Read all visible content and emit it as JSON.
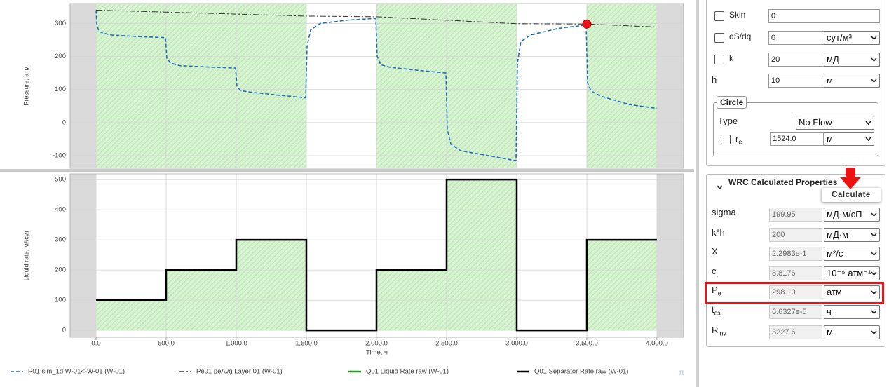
{
  "chart_data": [
    {
      "type": "line",
      "ylabel": "Pressure, атм",
      "xlim": [
        -185,
        4190
      ],
      "ylim": [
        -138,
        360
      ],
      "yticks": [
        -100,
        0,
        100,
        200,
        300
      ],
      "grid": true,
      "series": [
        {
          "name": "P01 sim_1d W-01<-W-01 (W-01)",
          "color": "#1f6fc0",
          "dash": "dashed",
          "x": [
            0,
            5,
            20,
            100,
            300,
            495,
            505,
            530,
            600,
            800,
            995,
            1005,
            1030,
            1100,
            1300,
            1495,
            1505,
            1530,
            1600,
            1800,
            1995,
            2005,
            2030,
            2100,
            2300,
            2495,
            2505,
            2530,
            2600,
            2800,
            2995,
            3005,
            3030,
            3100,
            3300,
            3495,
            3505,
            3530,
            3600,
            3800,
            4000
          ],
          "values": [
            340,
            300,
            275,
            265,
            260,
            257,
            195,
            180,
            172,
            168,
            165,
            110,
            97,
            92,
            83,
            75,
            230,
            280,
            300,
            310,
            315,
            200,
            175,
            167,
            158,
            150,
            -20,
            -65,
            -85,
            -100,
            -115,
            180,
            245,
            265,
            285,
            295,
            120,
            95,
            80,
            55,
            43
          ]
        },
        {
          "name": "Pe01 peAvg Layer 01 (W-01)",
          "color": "#333333",
          "dash": "dashdot",
          "x": [
            0,
            1500,
            2000,
            3000,
            3500,
            4000
          ],
          "values": [
            340,
            322,
            320,
            299,
            298,
            289
          ]
        }
      ],
      "marker": {
        "x": 3500,
        "y": 298.1,
        "color": "#e8141b"
      }
    },
    {
      "type": "step",
      "ylabel": "Liquid rate, м³/сут",
      "xlabel": "Time, ч",
      "xlim": [
        -185,
        4190
      ],
      "ylim": [
        -23,
        519
      ],
      "xticks": [
        {
          "value": 0,
          "label": "0.0"
        },
        {
          "value": 500,
          "label": "500.0"
        },
        {
          "value": 1000,
          "label": "1,000.0"
        },
        {
          "value": 1500,
          "label": "1,500.0"
        },
        {
          "value": 2000,
          "label": "2,000.0"
        },
        {
          "value": 2500,
          "label": "2,500.0"
        },
        {
          "value": 3000,
          "label": "3,000.0"
        },
        {
          "value": 3500,
          "label": "3,500.0"
        },
        {
          "value": 4000,
          "label": "4,000.0"
        }
      ],
      "yticks": [
        0,
        100,
        200,
        300,
        400,
        500
      ],
      "grid": true,
      "x": [
        0,
        500,
        1000,
        1500,
        2000,
        2500,
        3000,
        3500,
        4000
      ],
      "series": [
        {
          "name": "Q01 Liquid Rate raw (W-01)",
          "color": "#1e9a1e",
          "fill": true,
          "values": [
            100,
            200,
            300,
            0,
            200,
            500,
            0,
            300,
            300
          ]
        },
        {
          "name": "Q01 Separator Rate raw (W-01)",
          "color": "#000000",
          "fill": false,
          "values": [
            100,
            200,
            300,
            0,
            200,
            500,
            0,
            300,
            300
          ]
        }
      ]
    }
  ],
  "footer_mark": "π",
  "panel": {
    "params": [
      {
        "label": "Skin",
        "value": "0",
        "checkbox": true
      },
      {
        "label": "dS/dq",
        "value": "0",
        "unit": "сут/м³",
        "checkbox": true
      },
      {
        "label": "k",
        "value": "20",
        "unit": "мД",
        "checkbox": true
      },
      {
        "label": "h",
        "value": "10",
        "unit": "м",
        "checkbox": false
      }
    ],
    "circle": {
      "title": "Circle",
      "type_label": "Type",
      "type_value": "No Flow",
      "re": {
        "label": "r",
        "sub": "e",
        "value": "1524.0",
        "unit": "м"
      }
    },
    "wrc": {
      "title": "WRC Calculated Properties",
      "button": "Calculate",
      "rows": [
        {
          "label": "sigma",
          "value": "199.95",
          "unit": "мД·м/сП"
        },
        {
          "label": "k*h",
          "value": "200",
          "unit": "мД·м"
        },
        {
          "label": "X",
          "value": "2.2983e-1",
          "unit": "м²/с"
        },
        {
          "label": "c",
          "sub": "t",
          "value": "8.8176",
          "unit": "10⁻⁵ атм⁻¹"
        },
        {
          "label": "P",
          "sub": "e",
          "value": "298.10",
          "unit": "атм",
          "highlight": true
        },
        {
          "label": "t",
          "sub": "cs",
          "value": "6.6327e-5",
          "unit": "ч"
        },
        {
          "label": "R",
          "sub": "inv",
          "value": "3227.6",
          "unit": "м"
        }
      ]
    }
  }
}
